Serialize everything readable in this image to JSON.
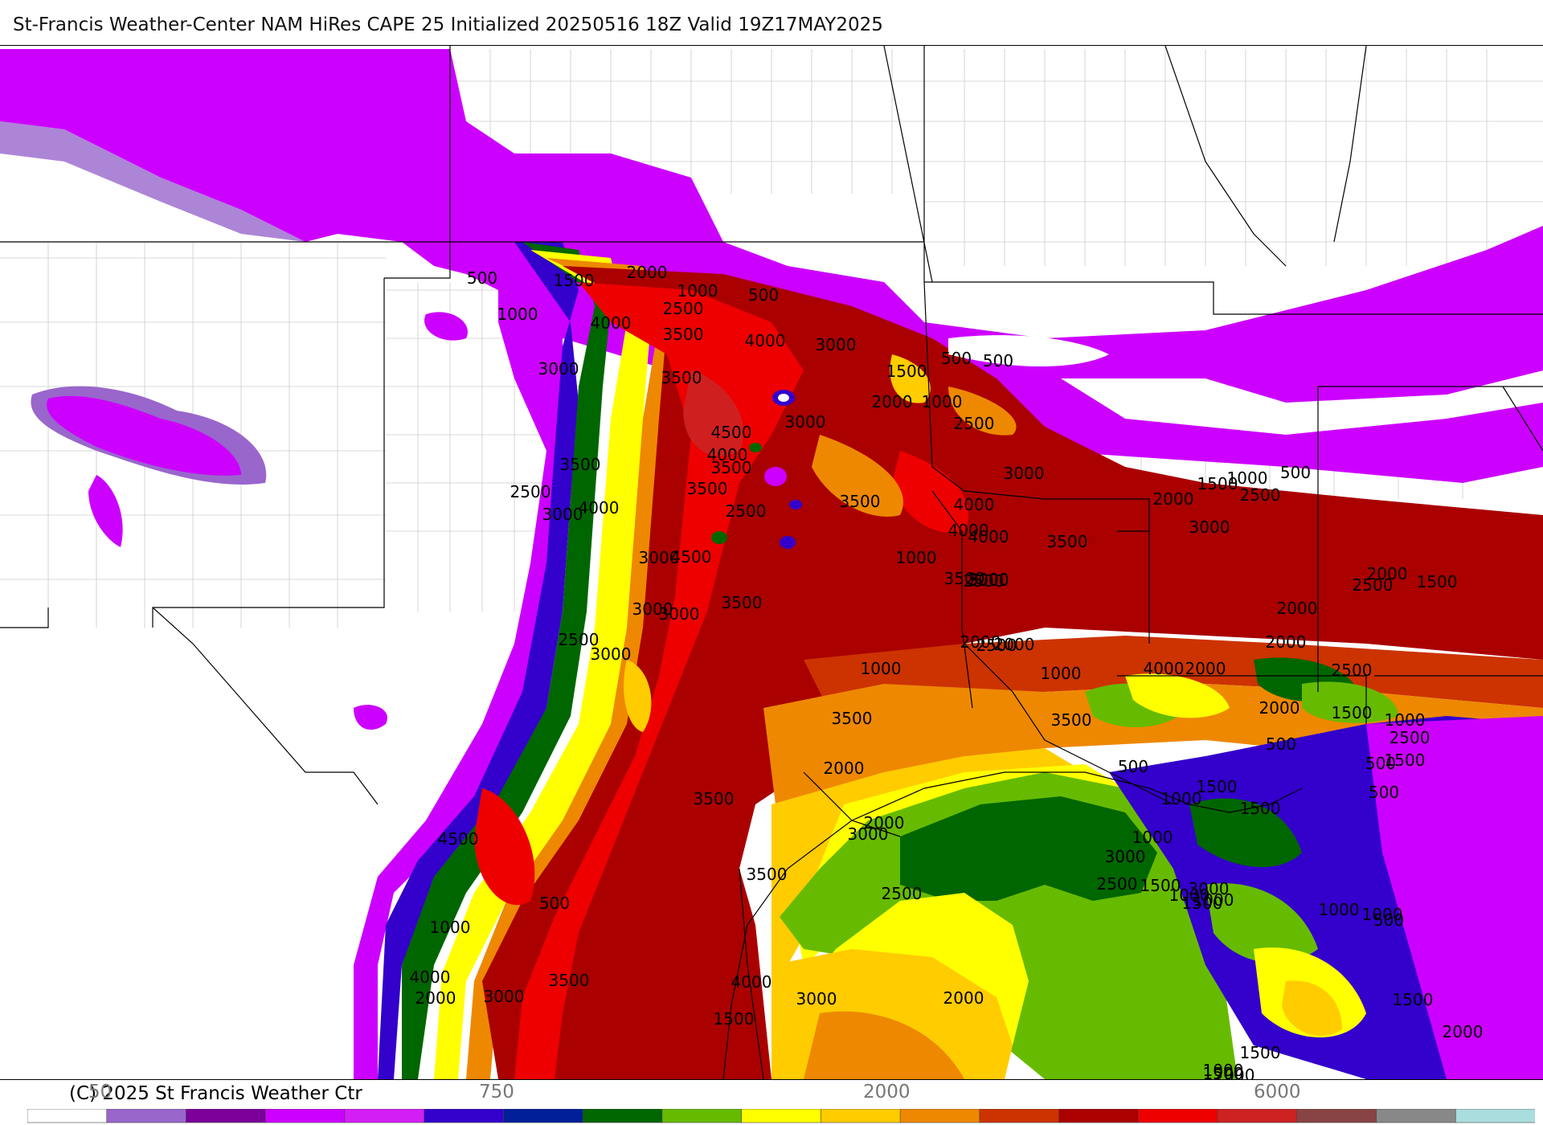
{
  "title": "St-Francis Weather-Center NAM HiRes CAPE  25 Initialized 20250516 18Z Valid 19Z17MAY2025",
  "copyright": "(C) 2025 St Francis Weather Ctr",
  "colorbar": {
    "ticks": [
      "50",
      "750",
      "2000",
      "6000"
    ],
    "colors": [
      "#ffffff",
      "#9966cc",
      "#7a0099",
      "#cc00ff",
      "#d41ef6",
      "#3300cc",
      "#001f99",
      "#006600",
      "#66bb00",
      "#ffff00",
      "#ffcc00",
      "#ee8800",
      "#cc3300",
      "#aa0000",
      "#ee0000",
      "#cc2222",
      "#884444",
      "#888888",
      "#aadddd"
    ]
  },
  "map_labels": [
    {
      "text": "500"
    },
    {
      "text": "1500"
    },
    {
      "text": "2000"
    },
    {
      "text": "1000"
    },
    {
      "text": "500"
    },
    {
      "text": "1000"
    },
    {
      "text": "4000"
    },
    {
      "text": "2500"
    },
    {
      "text": "3500"
    },
    {
      "text": "4000"
    },
    {
      "text": "3000"
    },
    {
      "text": "3000"
    },
    {
      "text": "3500"
    },
    {
      "text": "1500"
    },
    {
      "text": "500"
    },
    {
      "text": "500"
    },
    {
      "text": "2000"
    },
    {
      "text": "1000"
    },
    {
      "text": "3000"
    },
    {
      "text": "2500"
    },
    {
      "text": "4500"
    },
    {
      "text": "4000"
    },
    {
      "text": "3500"
    },
    {
      "text": "3000"
    },
    {
      "text": "3500"
    },
    {
      "text": "3500"
    },
    {
      "text": "2500"
    },
    {
      "text": "2500"
    },
    {
      "text": "3000"
    },
    {
      "text": "4000"
    },
    {
      "text": "3500"
    },
    {
      "text": "4000"
    },
    {
      "text": "1500"
    },
    {
      "text": "1000"
    },
    {
      "text": "500"
    },
    {
      "text": "2000"
    },
    {
      "text": "2500"
    },
    {
      "text": "4000"
    },
    {
      "text": "4000"
    },
    {
      "text": "3500"
    },
    {
      "text": "3000"
    },
    {
      "text": "4500"
    },
    {
      "text": "3500"
    },
    {
      "text": "3000"
    },
    {
      "text": "3000"
    },
    {
      "text": "2500"
    },
    {
      "text": "3500"
    },
    {
      "text": "3000"
    },
    {
      "text": "2000"
    },
    {
      "text": "1500"
    },
    {
      "text": "3000"
    },
    {
      "text": "3000"
    },
    {
      "text": "2500"
    },
    {
      "text": "3000"
    },
    {
      "text": "2500"
    },
    {
      "text": "2000"
    },
    {
      "text": "2000"
    },
    {
      "text": "2000"
    },
    {
      "text": "1000"
    },
    {
      "text": "4000"
    },
    {
      "text": "2500"
    },
    {
      "text": "2000"
    },
    {
      "text": "2500"
    },
    {
      "text": "2000"
    },
    {
      "text": "2000"
    },
    {
      "text": "1500"
    },
    {
      "text": "1000"
    },
    {
      "text": "1000"
    },
    {
      "text": "3500"
    },
    {
      "text": "3500"
    },
    {
      "text": "3500"
    },
    {
      "text": "3000"
    },
    {
      "text": "1500"
    },
    {
      "text": "2000"
    },
    {
      "text": "2500"
    },
    {
      "text": "500"
    },
    {
      "text": "1500"
    },
    {
      "text": "500"
    },
    {
      "text": "500"
    },
    {
      "text": "500"
    },
    {
      "text": "1500"
    },
    {
      "text": "1000"
    },
    {
      "text": "1000"
    },
    {
      "text": "3000"
    },
    {
      "text": "3000"
    },
    {
      "text": "1000"
    },
    {
      "text": "1000"
    },
    {
      "text": "500"
    },
    {
      "text": "4500"
    },
    {
      "text": "3500"
    },
    {
      "text": "2000"
    },
    {
      "text": "2500"
    },
    {
      "text": "1500"
    },
    {
      "text": "1000"
    },
    {
      "text": "1500"
    },
    {
      "text": "1000"
    },
    {
      "text": "3500"
    },
    {
      "text": "4000"
    },
    {
      "text": "3000"
    },
    {
      "text": "4000"
    },
    {
      "text": "2000"
    },
    {
      "text": "2500"
    },
    {
      "text": "1500"
    },
    {
      "text": "3000"
    },
    {
      "text": "2000"
    },
    {
      "text": "2000"
    },
    {
      "text": "1500"
    },
    {
      "text": "1500"
    },
    {
      "text": "1000"
    },
    {
      "text": "1000"
    },
    {
      "text": "500"
    },
    {
      "text": "1500"
    },
    {
      "text": "2000"
    },
    {
      "text": "1000"
    }
  ]
}
